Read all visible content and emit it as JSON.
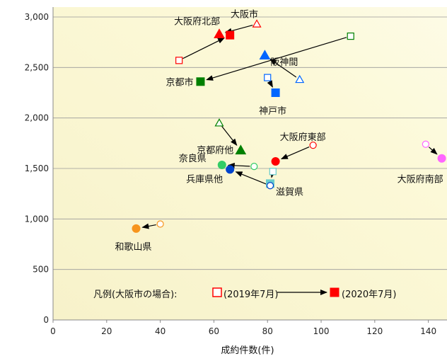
{
  "chart_data": {
    "type": "scatter",
    "xlabel": "成約件数(件)",
    "xlim": [
      0,
      145
    ],
    "ylim": [
      0,
      3000
    ],
    "x_ticks": [
      0,
      20,
      40,
      60,
      80,
      100,
      120,
      140
    ],
    "y_ticks": [
      0,
      500,
      1000,
      1500,
      2000,
      2500,
      3000
    ],
    "y_tick_labels": [
      "0",
      "500",
      "1,000",
      "1,500",
      "2,000",
      "2,500",
      "3,000"
    ],
    "legend": {
      "prefix": "凡例(大阪市の場合):",
      "from_label": "(2019年7月)",
      "to_label": "(2020年7月)"
    },
    "series": [
      {
        "label": "大阪市",
        "marker": "triangle",
        "color": "#ff0000",
        "x2019": 76,
        "y2019": 2930,
        "x2020": 62,
        "y2020": 2830
      },
      {
        "label": "大阪府北部",
        "marker": "square",
        "color": "#ff0000",
        "x2019": 47,
        "y2019": 2570,
        "x2020": 66,
        "y2020": 2820
      },
      {
        "label": "阪神間",
        "marker": "triangle",
        "color": "#0066ff",
        "x2019": 92,
        "y2019": 2380,
        "x2020": 79,
        "y2020": 2620
      },
      {
        "label": "京都市",
        "marker": "square",
        "color": "#008000",
        "x2019": 111,
        "y2019": 2810,
        "x2020": 55,
        "y2020": 2360
      },
      {
        "label": "神戸市",
        "marker": "square",
        "color": "#0066ff",
        "x2019": 80,
        "y2019": 2400,
        "x2020": 83,
        "y2020": 2250
      },
      {
        "label": "京都府他",
        "marker": "triangle",
        "color": "#008000",
        "x2019": 62,
        "y2019": 1950,
        "x2020": 70,
        "y2020": 1680
      },
      {
        "label": "大阪府東部",
        "marker": "circle",
        "color": "#ff0000",
        "x2019": 97,
        "y2019": 1730,
        "x2020": 83,
        "y2020": 1570
      },
      {
        "label": "奈良県",
        "marker": "circle",
        "color": "#33cc66",
        "x2019": 75,
        "y2019": 1520,
        "x2020": 63,
        "y2020": 1535
      },
      {
        "label": "滋賀県",
        "marker": "square",
        "color": "#66cccc",
        "x2019": 82,
        "y2019": 1470,
        "x2020": 81,
        "y2020": 1350
      },
      {
        "label": "兵庫県他",
        "marker": "circle",
        "color": "#0044cc",
        "x2019": 81,
        "y2019": 1330,
        "x2020": 66,
        "y2020": 1490
      },
      {
        "label": "大阪府南部",
        "marker": "circle",
        "color": "#ff66ff",
        "x2019": 139,
        "y2019": 1740,
        "x2020": 145,
        "y2020": 1600
      },
      {
        "label": "和歌山県",
        "marker": "circle",
        "color": "#f7941d",
        "x2019": 40,
        "y2019": 950,
        "x2020": 31,
        "y2020": 905
      }
    ]
  }
}
